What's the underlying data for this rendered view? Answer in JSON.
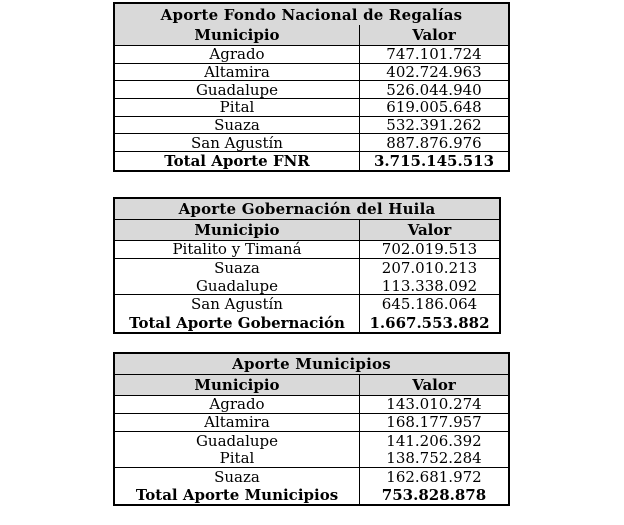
{
  "colors": {
    "header_bg": "#d9d9d9",
    "border": "#000000",
    "text": "#000000",
    "page_bg": "#ffffff"
  },
  "tables": [
    {
      "id": "aporte-fnr",
      "title": "Aporte Fondo Nacional de Regalías",
      "title_divider": false,
      "columns": [
        "Municipio",
        "Valor"
      ],
      "rows": [
        {
          "municipio": "Agrado",
          "valor": "747.101.724",
          "bold": false,
          "divider_after": true
        },
        {
          "municipio": "Altamira",
          "valor": "402.724.963",
          "bold": false,
          "divider_after": true
        },
        {
          "municipio": "Guadalupe",
          "valor": "526.044.940",
          "bold": false,
          "divider_after": true
        },
        {
          "municipio": "Pital",
          "valor": "619.005.648",
          "bold": false,
          "divider_after": true
        },
        {
          "municipio": "Suaza",
          "valor": "532.391.262",
          "bold": false,
          "divider_after": true
        },
        {
          "municipio": "San Agustín",
          "valor": "887.876.976",
          "bold": false,
          "divider_after": true
        },
        {
          "municipio": "Total Aporte FNR",
          "valor": "3.715.145.513",
          "bold": true,
          "divider_after": false
        }
      ]
    },
    {
      "id": "aporte-gobernacion",
      "title": "Aporte Gobernación del Huila",
      "title_divider": true,
      "columns": [
        "Municipio",
        "Valor"
      ],
      "rows": [
        {
          "municipio": "Pitalito y Timaná",
          "valor": "702.019.513",
          "bold": false,
          "divider_after": true
        },
        {
          "municipio": "Suaza",
          "valor": "207.010.213",
          "bold": false,
          "divider_after": false
        },
        {
          "municipio": "Guadalupe",
          "valor": "113.338.092",
          "bold": false,
          "divider_after": true
        },
        {
          "municipio": "San Agustín",
          "valor": "645.186.064",
          "bold": false,
          "divider_after": false
        },
        {
          "municipio": "Total Aporte Gobernación",
          "valor": "1.667.553.882",
          "bold": true,
          "divider_after": false
        }
      ]
    },
    {
      "id": "aporte-municipios",
      "title": "Aporte Municipios",
      "title_divider": true,
      "columns": [
        "Municipio",
        "Valor"
      ],
      "rows": [
        {
          "municipio": "Agrado",
          "valor": "143.010.274",
          "bold": false,
          "divider_after": true
        },
        {
          "municipio": "Altamira",
          "valor": "168.177.957",
          "bold": false,
          "divider_after": true
        },
        {
          "municipio": "Guadalupe",
          "valor": "141.206.392",
          "bold": false,
          "divider_after": false
        },
        {
          "municipio": "Pital",
          "valor": "138.752.284",
          "bold": false,
          "divider_after": true
        },
        {
          "municipio": "Suaza",
          "valor": "162.681.972",
          "bold": false,
          "divider_after": false
        },
        {
          "municipio": "Total Aporte Municipios",
          "valor": "753.828.878",
          "bold": true,
          "divider_after": false
        }
      ]
    }
  ]
}
